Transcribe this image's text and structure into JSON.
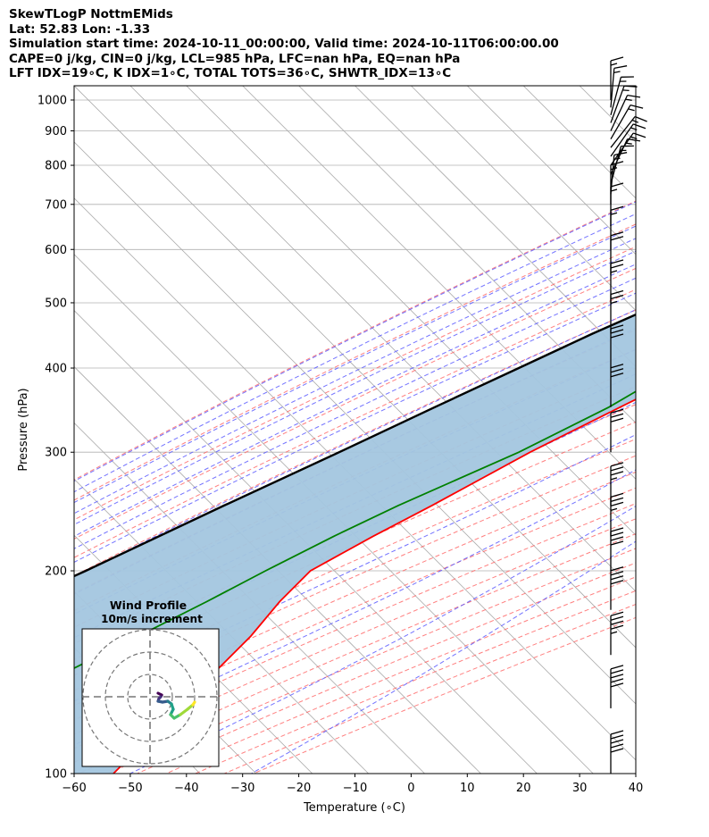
{
  "header": {
    "line1": "SkewTLogP NottmEMids",
    "line2": "Lat: 52.83   Lon: -1.33",
    "line3": "Simulation start time: 2024-10-11_00:00:00, Valid time: 2024-10-11T06:00:00.00",
    "line4": "CAPE=0 j/kg, CIN=0 j/kg, LCL=985 hPa, LFC=nan hPa, EQ=nan hPa",
    "line5": "LFT IDX=19∘C, K IDX=1∘C, TOTAL TOTS=36∘C, SHWTR_IDX=13∘C"
  },
  "inset": {
    "title": "Wind Profile",
    "subtitle": "10m/s increment"
  },
  "colors": {
    "temperature": "#ff0000",
    "dewpoint": "#008000",
    "parcel": "#000000",
    "shading": "#a3c6df",
    "dry_adiabat": "#ff6060",
    "moist_adiabat": "#5a5aff",
    "mixing_ratio": "#9932cc",
    "isotherm": "#aaaaaa"
  },
  "chart_data": {
    "type": "skew-t log-p",
    "xlabel": "Temperature (∘C)",
    "ylabel": "Pressure (hPa)",
    "xlim": [
      -60,
      40
    ],
    "ylim_hpa": [
      1050,
      100
    ],
    "x_ticks": [
      "−60",
      "−50",
      "−40",
      "−30",
      "−20",
      "−10",
      "0",
      "10",
      "20",
      "30",
      "40"
    ],
    "y_ticks": [
      "100",
      "200",
      "300",
      "400",
      "500",
      "600",
      "700",
      "800",
      "900",
      "1000"
    ],
    "grid": true,
    "series": [
      {
        "key": "temperature",
        "points": [
          [
            1000,
            3
          ],
          [
            985,
            6
          ],
          [
            950,
            5.5
          ],
          [
            900,
            3
          ],
          [
            850,
            1
          ],
          [
            800,
            0
          ],
          [
            760,
            2
          ],
          [
            700,
            1
          ],
          [
            650,
            -1
          ],
          [
            600,
            -3
          ],
          [
            550,
            -6
          ],
          [
            500,
            -10
          ],
          [
            450,
            -15
          ],
          [
            400,
            -21
          ],
          [
            350,
            -28
          ],
          [
            300,
            -36
          ],
          [
            250,
            -44
          ],
          [
            225,
            -49
          ],
          [
            200,
            -54
          ],
          [
            180,
            -54
          ],
          [
            160,
            -53
          ],
          [
            140,
            -53
          ],
          [
            120,
            -53
          ],
          [
            100,
            -53
          ]
        ]
      },
      {
        "key": "dewpoint",
        "points": [
          [
            985,
            1
          ],
          [
            960,
            2
          ],
          [
            940,
            4
          ],
          [
            900,
            3
          ],
          [
            850,
            0
          ],
          [
            800,
            -2
          ],
          [
            750,
            -12
          ],
          [
            700,
            -18
          ],
          [
            650,
            -17
          ],
          [
            600,
            -19
          ],
          [
            550,
            -25
          ],
          [
            500,
            -25
          ],
          [
            450,
            -20
          ],
          [
            400,
            -25
          ],
          [
            350,
            -30
          ],
          [
            300,
            -38
          ],
          [
            250,
            -50
          ],
          [
            225,
            -56
          ],
          [
            200,
            -62
          ],
          [
            180,
            -67
          ],
          [
            160,
            -73
          ],
          [
            140,
            -80
          ],
          [
            120,
            -80
          ],
          [
            100,
            -80
          ]
        ]
      },
      {
        "key": "parcel",
        "points": [
          [
            1000,
            3
          ],
          [
            985,
            2
          ],
          [
            950,
            0
          ],
          [
            900,
            -3
          ],
          [
            850,
            -6
          ],
          [
            800,
            -9
          ],
          [
            750,
            -13
          ],
          [
            700,
            -18
          ],
          [
            650,
            -22
          ],
          [
            600,
            -27
          ],
          [
            550,
            -33
          ],
          [
            500,
            -39
          ],
          [
            450,
            -46
          ],
          [
            400,
            -53
          ],
          [
            350,
            -61
          ],
          [
            300,
            -70
          ],
          [
            250,
            -81
          ],
          [
            200,
            -94
          ],
          [
            150,
            -112
          ],
          [
            100,
            -138
          ]
        ]
      }
    ],
    "wind_profile": [
      [
        1000,
        0,
        15
      ],
      [
        975,
        5,
        15
      ],
      [
        950,
        15,
        15
      ],
      [
        925,
        20,
        15
      ],
      [
        900,
        25,
        15
      ],
      [
        875,
        30,
        15
      ],
      [
        850,
        38,
        15
      ],
      [
        825,
        35,
        15
      ],
      [
        800,
        35,
        15
      ],
      [
        775,
        25,
        15
      ],
      [
        750,
        15,
        15
      ],
      [
        725,
        5,
        15
      ],
      [
        700,
        0,
        15
      ],
      [
        650,
        0,
        15
      ],
      [
        600,
        0,
        15
      ],
      [
        550,
        0,
        20
      ],
      [
        500,
        0,
        25
      ],
      [
        450,
        0,
        25
      ],
      [
        400,
        0,
        30
      ],
      [
        350,
        0,
        30
      ],
      [
        300,
        0,
        30
      ],
      [
        250,
        0,
        35
      ],
      [
        225,
        0,
        35
      ],
      [
        200,
        0,
        40
      ],
      [
        175,
        0,
        40
      ],
      [
        150,
        0,
        45
      ],
      [
        125,
        0,
        50
      ],
      [
        100,
        0,
        50
      ]
    ]
  }
}
